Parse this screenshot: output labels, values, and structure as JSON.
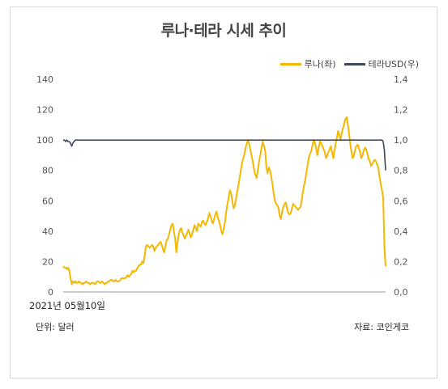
{
  "colors": {
    "luna": "#f5b800",
    "terra": "#3d4a5c",
    "axis": "#999999"
  },
  "chart_data": {
    "type": "line",
    "title": "루나·테라 시세 추이",
    "x_start_label": "2021년 05월10일",
    "y_left": {
      "ticks": [
        "0",
        "20",
        "40",
        "60",
        "80",
        "100",
        "120",
        "140"
      ],
      "ylim": [
        0,
        140
      ]
    },
    "y_right": {
      "ticks": [
        "0,0",
        "0,2",
        "0,4",
        "0,6",
        "0,8",
        "1,0",
        "1,2",
        "1,4"
      ],
      "ylim": [
        0,
        1.4
      ]
    },
    "unit_label": "단위: 달러",
    "source_label": "자료: 코인게코",
    "grid": false,
    "legend_position": "top-right",
    "series": [
      {
        "name": "루나(좌)",
        "axis": "left",
        "color": "#f5b800",
        "values": [
          17,
          16,
          16,
          15,
          16,
          14,
          9,
          5,
          7,
          6,
          7,
          6,
          6,
          7,
          6,
          6,
          5,
          6,
          6,
          7,
          6,
          6,
          5,
          6,
          6,
          6,
          5,
          6,
          7,
          7,
          6,
          6,
          7,
          6,
          5,
          6,
          6,
          7,
          7,
          8,
          8,
          7,
          7,
          8,
          7,
          7,
          7,
          8,
          9,
          9,
          9,
          9,
          10,
          11,
          10,
          11,
          12,
          14,
          13,
          14,
          14,
          16,
          17,
          18,
          18,
          20,
          19,
          24,
          30,
          31,
          30,
          29,
          30,
          31,
          30,
          27,
          29,
          30,
          31,
          32,
          33,
          31,
          28,
          26,
          30,
          34,
          35,
          38,
          41,
          44,
          45,
          40,
          35,
          26,
          33,
          38,
          41,
          42,
          39,
          37,
          35,
          37,
          39,
          41,
          38,
          36,
          38,
          41,
          44,
          42,
          40,
          45,
          44,
          43,
          46,
          47,
          45,
          44,
          46,
          48,
          52,
          50,
          47,
          45,
          48,
          51,
          53,
          49,
          47,
          44,
          40,
          38,
          42,
          46,
          53,
          58,
          62,
          67,
          65,
          60,
          55,
          57,
          61,
          66,
          70,
          75,
          80,
          85,
          88,
          91,
          95,
          98,
          100,
          97,
          93,
          89,
          85,
          80,
          77,
          75,
          80,
          86,
          90,
          95,
          99,
          96,
          93,
          82,
          78,
          82,
          80,
          76,
          71,
          65,
          60,
          58,
          57,
          55,
          50,
          48,
          53,
          56,
          58,
          59,
          55,
          52,
          51,
          52,
          55,
          58,
          57,
          56,
          55,
          54,
          55,
          56,
          60,
          66,
          70,
          74,
          79,
          84,
          89,
          91,
          93,
          97,
          100,
          98,
          94,
          90,
          95,
          99,
          98,
          96,
          94,
          92,
          88,
          90,
          92,
          94,
          96,
          92,
          88,
          93,
          98,
          102,
          106,
          103,
          100,
          105,
          108,
          111,
          114,
          115,
          110,
          104,
          97,
          92,
          88,
          90,
          94,
          96,
          97,
          95,
          92,
          88,
          90,
          93,
          95,
          94,
          91,
          88,
          86,
          83,
          84,
          86,
          87,
          86,
          84,
          82,
          76,
          71,
          67,
          62,
          30,
          17
        ]
      },
      {
        "name": "테라USD(우)",
        "axis": "right",
        "color": "#3d4a5c",
        "values": [
          1.0,
          1.0,
          0.99,
          1.0,
          0.99,
          0.99,
          0.98,
          0.96,
          0.98,
          0.99,
          1.0,
          1.0,
          1.0,
          1.0,
          1.0,
          1.0,
          1.0,
          1.0,
          1.0,
          1.0,
          1.0,
          1.0,
          1.0,
          1.0,
          1.0,
          1.0,
          1.0,
          1.0,
          1.0,
          1.0,
          1.0,
          1.0,
          1.0,
          1.0,
          1.0,
          1.0,
          1.0,
          1.0,
          1.0,
          1.0,
          1.0,
          1.0,
          1.0,
          1.0,
          1.0,
          1.0,
          1.0,
          1.0,
          1.0,
          1.0,
          1.0,
          1.0,
          1.0,
          1.0,
          1.0,
          1.0,
          1.0,
          1.0,
          1.0,
          1.0,
          1.0,
          1.0,
          1.0,
          1.0,
          1.0,
          1.0,
          1.0,
          1.0,
          1.0,
          1.0,
          1.0,
          1.0,
          1.0,
          1.0,
          1.0,
          1.0,
          1.0,
          1.0,
          1.0,
          1.0,
          1.0,
          1.0,
          1.0,
          1.0,
          1.0,
          1.0,
          1.0,
          1.0,
          1.0,
          1.0,
          1.0,
          1.0,
          1.0,
          1.0,
          1.0,
          1.0,
          1.0,
          1.0,
          1.0,
          1.0,
          1.0,
          1.0,
          1.0,
          1.0,
          1.0,
          1.0,
          1.0,
          1.0,
          1.0,
          1.0,
          1.0,
          1.0,
          1.0,
          1.0,
          1.0,
          1.0,
          1.0,
          1.0,
          1.0,
          1.0,
          1.0,
          1.0,
          1.0,
          1.0,
          1.0,
          1.0,
          1.0,
          1.0,
          1.0,
          1.0,
          1.0,
          1.0,
          1.0,
          1.0,
          1.0,
          1.0,
          1.0,
          1.0,
          1.0,
          1.0,
          1.0,
          1.0,
          1.0,
          1.0,
          1.0,
          1.0,
          1.0,
          1.0,
          1.0,
          1.0,
          1.0,
          1.0,
          1.0,
          1.0,
          1.0,
          1.0,
          1.0,
          1.0,
          1.0,
          1.0,
          1.0,
          1.0,
          1.0,
          1.0,
          1.0,
          1.0,
          1.0,
          1.0,
          1.0,
          1.0,
          1.0,
          1.0,
          1.0,
          1.0,
          1.0,
          1.0,
          1.0,
          1.0,
          1.0,
          1.0,
          1.0,
          1.0,
          1.0,
          1.0,
          1.0,
          1.0,
          1.0,
          1.0,
          1.0,
          1.0,
          1.0,
          1.0,
          1.0,
          1.0,
          1.0,
          1.0,
          1.0,
          1.0,
          1.0,
          1.0,
          1.0,
          1.0,
          1.0,
          1.0,
          1.0,
          1.0,
          1.0,
          1.0,
          1.0,
          1.0,
          1.0,
          1.0,
          1.0,
          1.0,
          1.0,
          1.0,
          1.0,
          1.0,
          1.0,
          1.0,
          1.0,
          1.0,
          1.0,
          1.0,
          1.0,
          1.0,
          1.0,
          1.0,
          1.0,
          1.0,
          1.0,
          1.0,
          1.0,
          1.0,
          1.0,
          1.0,
          1.0,
          1.0,
          1.0,
          1.0,
          1.0,
          1.0,
          1.0,
          1.0,
          1.0,
          1.0,
          1.0,
          1.0,
          1.0,
          1.0,
          1.0,
          1.0,
          1.0,
          1.0,
          1.0,
          1.0,
          1.0,
          1.0,
          1.0,
          1.0,
          1.0,
          1.0,
          1.0,
          1.0,
          0.99,
          0.93,
          0.8
        ]
      }
    ]
  }
}
